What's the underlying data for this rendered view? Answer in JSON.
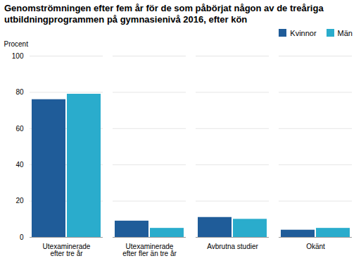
{
  "chart_data": {
    "type": "bar",
    "title": "Genomströmningen efter fem år för de som påbörjat någon av de treåriga\nutbildningprogrammen på gymnasienivå 2016, efter kön",
    "y_label": "Procent",
    "categories": [
      "Utexaminerade\nefter tre år",
      "Utexaminerade\nefter fler än tre år",
      "Avbrutna studier",
      "Okänt"
    ],
    "series": [
      {
        "name": "Kvinnor",
        "color": "#1F5C99",
        "values": [
          76,
          9,
          11,
          4
        ]
      },
      {
        "name": "Män",
        "color": "#2AACCC",
        "values": [
          79,
          5,
          10,
          5
        ]
      }
    ],
    "ylim": [
      0,
      100
    ],
    "yticks": [
      0,
      20,
      40,
      60,
      80,
      100
    ],
    "grid": true,
    "legend": "upper right"
  }
}
